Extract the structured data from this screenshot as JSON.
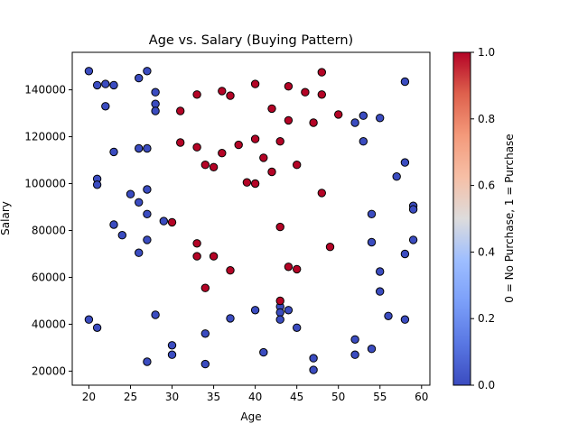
{
  "chart_data": {
    "type": "scatter",
    "title": "Age vs. Salary (Buying Pattern)",
    "xlabel": "Age",
    "ylabel": "Salary",
    "xlim": [
      18,
      61
    ],
    "ylim": [
      14000,
      156000
    ],
    "xticks": [
      20,
      25,
      30,
      35,
      40,
      45,
      50,
      55,
      60
    ],
    "yticks": [
      20000,
      40000,
      60000,
      80000,
      100000,
      120000,
      140000
    ],
    "colorbar": {
      "label": "0 = No Purchase, 1 = Purchase",
      "range": [
        0,
        1
      ],
      "ticks": [
        0.0,
        0.2,
        0.4,
        0.6,
        0.8,
        1.0
      ],
      "colormap": "coolwarm"
    },
    "colors": {
      "no_purchase": "#3b4cc0",
      "purchase": "#b40426"
    },
    "points": [
      {
        "x": 20,
        "y": 148000,
        "c": 0
      },
      {
        "x": 21,
        "y": 142000,
        "c": 0
      },
      {
        "x": 22,
        "y": 142500,
        "c": 0
      },
      {
        "x": 23,
        "y": 142000,
        "c": 0
      },
      {
        "x": 22,
        "y": 133000,
        "c": 0
      },
      {
        "x": 26,
        "y": 145000,
        "c": 0
      },
      {
        "x": 27,
        "y": 148000,
        "c": 0
      },
      {
        "x": 28,
        "y": 139000,
        "c": 0
      },
      {
        "x": 28,
        "y": 134000,
        "c": 0
      },
      {
        "x": 28,
        "y": 131000,
        "c": 0
      },
      {
        "x": 23,
        "y": 113500,
        "c": 0
      },
      {
        "x": 26,
        "y": 115000,
        "c": 0
      },
      {
        "x": 27,
        "y": 115000,
        "c": 0
      },
      {
        "x": 21,
        "y": 102000,
        "c": 0
      },
      {
        "x": 21,
        "y": 99500,
        "c": 0
      },
      {
        "x": 25,
        "y": 95500,
        "c": 0
      },
      {
        "x": 27,
        "y": 97500,
        "c": 0
      },
      {
        "x": 26,
        "y": 92000,
        "c": 0
      },
      {
        "x": 27,
        "y": 87000,
        "c": 0
      },
      {
        "x": 29,
        "y": 84000,
        "c": 0
      },
      {
        "x": 23,
        "y": 82500,
        "c": 0
      },
      {
        "x": 24,
        "y": 78000,
        "c": 0
      },
      {
        "x": 27,
        "y": 76000,
        "c": 0
      },
      {
        "x": 26,
        "y": 70500,
        "c": 0
      },
      {
        "x": 20,
        "y": 42000,
        "c": 0
      },
      {
        "x": 21,
        "y": 38500,
        "c": 0
      },
      {
        "x": 28,
        "y": 44000,
        "c": 0
      },
      {
        "x": 30,
        "y": 31000,
        "c": 0
      },
      {
        "x": 30,
        "y": 27000,
        "c": 0
      },
      {
        "x": 27,
        "y": 24000,
        "c": 0
      },
      {
        "x": 34,
        "y": 36000,
        "c": 0
      },
      {
        "x": 34,
        "y": 23000,
        "c": 0
      },
      {
        "x": 37,
        "y": 42500,
        "c": 0
      },
      {
        "x": 40,
        "y": 46000,
        "c": 0
      },
      {
        "x": 41,
        "y": 28000,
        "c": 0
      },
      {
        "x": 43,
        "y": 47500,
        "c": 0
      },
      {
        "x": 43,
        "y": 45000,
        "c": 0
      },
      {
        "x": 43,
        "y": 42000,
        "c": 0
      },
      {
        "x": 44,
        "y": 46000,
        "c": 0
      },
      {
        "x": 45,
        "y": 38500,
        "c": 0
      },
      {
        "x": 47,
        "y": 25500,
        "c": 0
      },
      {
        "x": 47,
        "y": 20500,
        "c": 0
      },
      {
        "x": 52,
        "y": 126000,
        "c": 0
      },
      {
        "x": 53,
        "y": 129000,
        "c": 0
      },
      {
        "x": 55,
        "y": 128000,
        "c": 0
      },
      {
        "x": 53,
        "y": 118000,
        "c": 0
      },
      {
        "x": 58,
        "y": 143500,
        "c": 0
      },
      {
        "x": 58,
        "y": 109000,
        "c": 0
      },
      {
        "x": 57,
        "y": 103000,
        "c": 0
      },
      {
        "x": 59,
        "y": 90500,
        "c": 0
      },
      {
        "x": 59,
        "y": 89000,
        "c": 0
      },
      {
        "x": 54,
        "y": 87000,
        "c": 0
      },
      {
        "x": 54,
        "y": 75000,
        "c": 0
      },
      {
        "x": 59,
        "y": 76000,
        "c": 0
      },
      {
        "x": 58,
        "y": 70000,
        "c": 0
      },
      {
        "x": 55,
        "y": 62500,
        "c": 0
      },
      {
        "x": 55,
        "y": 54000,
        "c": 0
      },
      {
        "x": 56,
        "y": 43500,
        "c": 0
      },
      {
        "x": 58,
        "y": 42000,
        "c": 0
      },
      {
        "x": 52,
        "y": 33500,
        "c": 0
      },
      {
        "x": 52,
        "y": 27000,
        "c": 0
      },
      {
        "x": 54,
        "y": 29500,
        "c": 0
      },
      {
        "x": 31,
        "y": 131000,
        "c": 1
      },
      {
        "x": 33,
        "y": 138000,
        "c": 1
      },
      {
        "x": 36,
        "y": 139500,
        "c": 1
      },
      {
        "x": 37,
        "y": 137500,
        "c": 1
      },
      {
        "x": 40,
        "y": 142500,
        "c": 1
      },
      {
        "x": 42,
        "y": 132000,
        "c": 1
      },
      {
        "x": 44,
        "y": 141500,
        "c": 1
      },
      {
        "x": 46,
        "y": 139000,
        "c": 1
      },
      {
        "x": 48,
        "y": 147500,
        "c": 1
      },
      {
        "x": 48,
        "y": 138000,
        "c": 1
      },
      {
        "x": 50,
        "y": 129500,
        "c": 1
      },
      {
        "x": 44,
        "y": 127000,
        "c": 1
      },
      {
        "x": 47,
        "y": 126000,
        "c": 1
      },
      {
        "x": 31,
        "y": 117500,
        "c": 1
      },
      {
        "x": 33,
        "y": 115500,
        "c": 1
      },
      {
        "x": 36,
        "y": 113000,
        "c": 1
      },
      {
        "x": 38,
        "y": 116500,
        "c": 1
      },
      {
        "x": 40,
        "y": 119000,
        "c": 1
      },
      {
        "x": 43,
        "y": 118000,
        "c": 1
      },
      {
        "x": 41,
        "y": 111000,
        "c": 1
      },
      {
        "x": 34,
        "y": 108000,
        "c": 1
      },
      {
        "x": 35,
        "y": 107000,
        "c": 1
      },
      {
        "x": 42,
        "y": 105000,
        "c": 1
      },
      {
        "x": 45,
        "y": 108000,
        "c": 1
      },
      {
        "x": 39,
        "y": 100500,
        "c": 1
      },
      {
        "x": 40,
        "y": 100000,
        "c": 1
      },
      {
        "x": 48,
        "y": 96000,
        "c": 1
      },
      {
        "x": 30,
        "y": 83500,
        "c": 1
      },
      {
        "x": 43,
        "y": 81500,
        "c": 1
      },
      {
        "x": 33,
        "y": 74500,
        "c": 1
      },
      {
        "x": 33,
        "y": 69000,
        "c": 1
      },
      {
        "x": 35,
        "y": 69000,
        "c": 1
      },
      {
        "x": 49,
        "y": 73000,
        "c": 1
      },
      {
        "x": 37,
        "y": 63000,
        "c": 1
      },
      {
        "x": 44,
        "y": 64500,
        "c": 1
      },
      {
        "x": 45,
        "y": 63500,
        "c": 1
      },
      {
        "x": 34,
        "y": 55500,
        "c": 1
      },
      {
        "x": 43,
        "y": 50000,
        "c": 1
      }
    ]
  }
}
